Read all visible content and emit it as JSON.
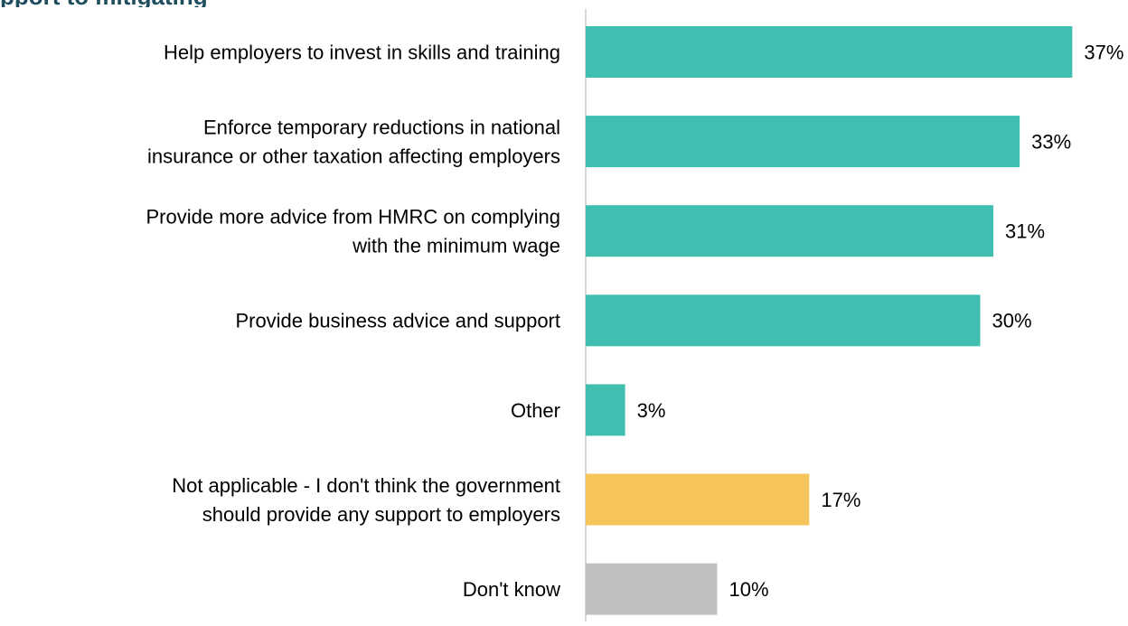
{
  "chart_data": {
    "type": "bar",
    "orientation": "horizontal",
    "title": "pport to mitigating",
    "categories": [
      "Help employers to invest in skills and training",
      "Enforce temporary reductions in national insurance or other taxation affecting employers",
      "Provide more advice from HMRC on complying with the minimum wage",
      "Provide business advice and support",
      "Other",
      "Not applicable - I don't think the government should provide any support to employers",
      "Don't know"
    ],
    "label_lines": [
      [
        "Help employers to invest in skills and training"
      ],
      [
        "Enforce temporary reductions in national",
        "insurance or other taxation affecting employers"
      ],
      [
        "Provide more advice from HMRC on complying",
        "with the minimum wage"
      ],
      [
        "Provide business advice and support"
      ],
      [
        "Other"
      ],
      [
        "Not applicable - I don't think the government",
        "should provide any support to employers"
      ],
      [
        "Don't know"
      ]
    ],
    "values": [
      37,
      33,
      31,
      30,
      3,
      17,
      10
    ],
    "value_labels": [
      "37%",
      "33%",
      "31%",
      "30%",
      "3%",
      "17%",
      "10%"
    ],
    "bar_colors": [
      "#40bfb0",
      "#40bfb0",
      "#40bfb0",
      "#40bfb0",
      "#40bfb0",
      "#f5c55c",
      "#bfbfbf"
    ],
    "xlim": [
      0,
      40
    ],
    "grid": false,
    "legend": "none",
    "colors": {
      "axis": "#d9d9d9",
      "label_text": "#000000",
      "title_text": "#1f4e5f"
    }
  }
}
